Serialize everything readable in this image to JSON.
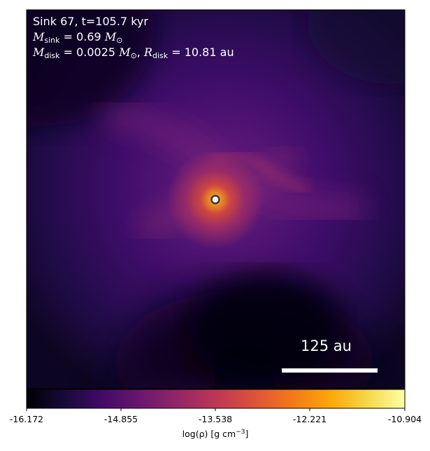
{
  "annotations": {
    "sink_id_time": "Sink 67, t=105.7 kyr",
    "m_sink_value": "0.69",
    "m_disk_value": "0.0025",
    "r_disk_value": "10.81",
    "r_disk_unit": "au",
    "msun_symbol": "M",
    "m_label": "M",
    "sink_sub": "sink",
    "disk_sub": "disk",
    "r_label": "R"
  },
  "scale_bar": {
    "label": "125 au"
  },
  "colorbar": {
    "colormap": "inferno",
    "label_prefix": "log(ρ) [g cm",
    "label_exp": "−3",
    "label_suffix": "]",
    "ticks": [
      "-16.172",
      "-14.855",
      "-13.538",
      "-12.221",
      "-10.904"
    ],
    "vmin": -16.172,
    "vmax": -10.904
  },
  "sink_marker": {
    "fill_color": "#ffffff",
    "ring_color": "#3a3a3a"
  }
}
